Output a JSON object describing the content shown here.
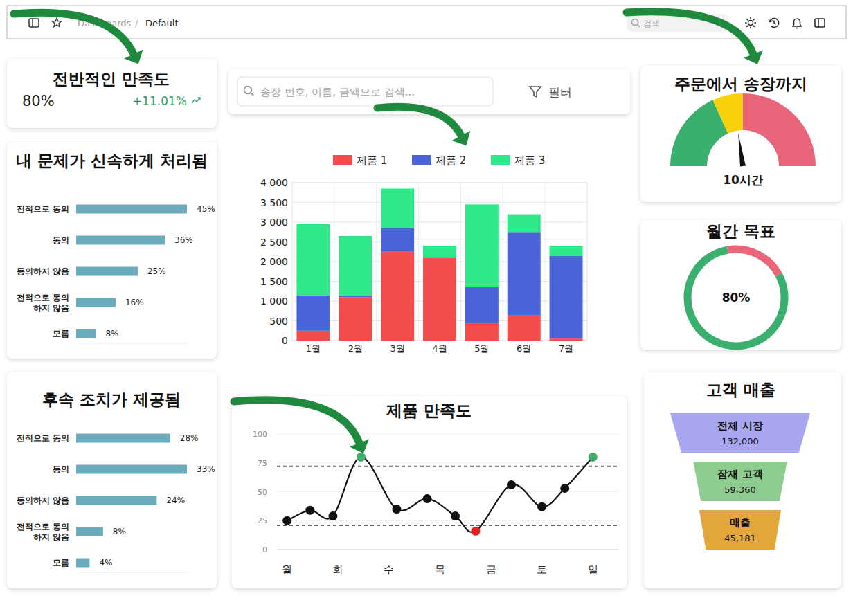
{
  "header": {
    "breadcrumb": [
      "Dashboards",
      "Default"
    ],
    "separator": "/",
    "search_placeholder": "검색"
  },
  "kpi": {
    "title": "전반적인 만족도",
    "value": "80%",
    "change": "+11.01%"
  },
  "search": {
    "placeholder": "송장 번호, 이름, 금액으로 검색...",
    "filter": "필터"
  },
  "chart_data": [
    {
      "type": "bar",
      "orientation": "horizontal",
      "title": "내 문제가 신속하게 처리됨",
      "categories": [
        "전적으로 동의",
        "동의",
        "동의하지 않음",
        "전적으로 동의\n하지 않음",
        "모름"
      ],
      "values": [
        45,
        36,
        25,
        16,
        8
      ],
      "value_labels": [
        "45%",
        "36%",
        "25%",
        "16%",
        "8%"
      ],
      "color": "#6aabbd",
      "xlim": [
        0,
        45
      ],
      "data_labels": true,
      "tick_labels": "y"
    },
    {
      "type": "bar",
      "orientation": "horizontal",
      "title": "후속 조치가 제공됨",
      "categories": [
        "전적으로 동의",
        "동의",
        "동의하지 않음",
        "전적으로 동의\n하지 않음",
        "모름"
      ],
      "values": [
        28,
        33,
        24,
        8,
        4
      ],
      "value_labels": [
        "28%",
        "33%",
        "24%",
        "8%",
        "4%"
      ],
      "color": "#6aabbd",
      "xlim": [
        0,
        33
      ],
      "data_labels": true,
      "tick_labels": "y"
    },
    {
      "type": "bar",
      "stacked": true,
      "categories": [
        "1월",
        "2월",
        "3월",
        "4월",
        "5월",
        "6월",
        "7월"
      ],
      "series": [
        {
          "name": "제품 1",
          "color": "#f44b4b",
          "values": [
            250,
            1100,
            2250,
            2100,
            450,
            650,
            50
          ]
        },
        {
          "name": "제품 2",
          "color": "#4a63d8",
          "values": [
            900,
            50,
            600,
            0,
            900,
            2100,
            2100
          ]
        },
        {
          "name": "제품 3",
          "color": "#2ee88a",
          "values": [
            1800,
            1500,
            1000,
            300,
            2100,
            450,
            250
          ]
        }
      ],
      "ylim": [
        0,
        4000
      ],
      "yticks": [
        0,
        500,
        {
          "value": 1000,
          "label": "1 000"
        },
        {
          "value": 1500,
          "label": "1 500"
        },
        {
          "value": 2000,
          "label": "2 000"
        },
        {
          "value": 2500,
          "label": "2 500"
        },
        {
          "value": 3000,
          "label": "3 000"
        },
        {
          "value": 3500,
          "label": "3 500"
        },
        {
          "value": 4000,
          "label": "4 000"
        }
      ],
      "grid": true,
      "legend": "top"
    },
    {
      "type": "line",
      "title": "제품 만족도",
      "x": [
        0,
        0.45,
        0.9,
        1.45,
        2.15,
        2.75,
        3.3,
        3.7,
        4.4,
        5.0,
        5.45,
        6.0
      ],
      "series": [
        {
          "values": [
            25,
            34,
            29,
            80,
            35,
            44,
            29,
            16,
            56,
            37,
            53,
            80
          ],
          "color": "#111111",
          "colors": [
            "#111111",
            "#111111",
            "#111111",
            "#3fae6a",
            "#111111",
            "#111111",
            "#111111",
            "#e8221f",
            "#111111",
            "#111111",
            "#111111",
            "#3fae6a"
          ],
          "marker": "circle",
          "line_style": "solid"
        }
      ],
      "xlim": [
        -0.2,
        6.5
      ],
      "xticks": [
        {
          "value": 0,
          "label": "월"
        },
        {
          "value": 1,
          "label": "화"
        },
        {
          "value": 2,
          "label": "수"
        },
        {
          "value": 3,
          "label": "목"
        },
        {
          "value": 4,
          "label": "금"
        },
        {
          "value": 5,
          "label": "토"
        },
        {
          "value": 6,
          "label": "일"
        }
      ],
      "ylim": [
        0,
        100
      ],
      "yticks": [
        0,
        25,
        50,
        75,
        100
      ],
      "thresholds": [
        72,
        21
      ],
      "grid": true
    },
    {
      "type": "gauge",
      "title": "주문에서 송장까지",
      "values": [
        10
      ],
      "value_labels": [
        "10시간"
      ],
      "ylim": [
        0,
        22
      ],
      "bands": [
        {
          "from": 0,
          "to": 8,
          "color": "#3aaf6e"
        },
        {
          "from": 8,
          "to": 11,
          "color": "#f7d10a"
        },
        {
          "from": 11,
          "to": 22,
          "color": "#e8657a"
        }
      ]
    },
    {
      "type": "donut",
      "title": "월간 목표",
      "values": [
        80
      ],
      "value_labels": [
        "80%"
      ],
      "ylim": [
        0,
        100
      ],
      "colors": [
        "#3aaf6e",
        "#e8657a"
      ]
    },
    {
      "type": "funnel",
      "title": "고객 매출",
      "categories": [
        "전체 시장",
        "잠재 고객",
        "매출"
      ],
      "values": [
        132000,
        59360,
        45181
      ],
      "value_labels": [
        "132,000",
        "59,360",
        "45,181"
      ],
      "colors": [
        "#a8a6ef",
        "#8fcc8f",
        "#e2a63b"
      ],
      "data_labels": true
    }
  ]
}
